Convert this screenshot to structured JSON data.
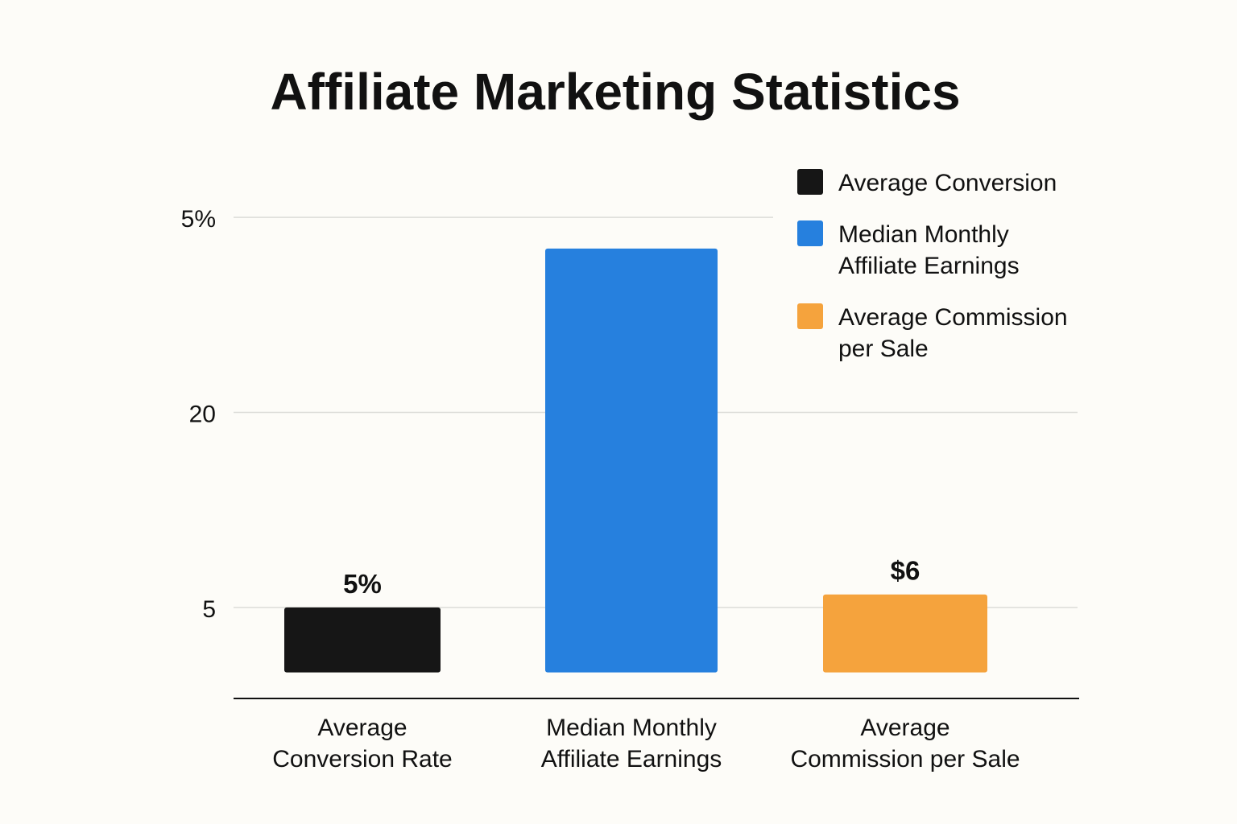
{
  "chart_data": {
    "type": "bar",
    "title": "Affiliate Marketing Statistics",
    "categories": [
      "Average\nConversion Rate",
      "Median Monthly\nAffiliate Earnings",
      "Average\nCommission per Sale"
    ],
    "values": [
      5,
      32.6,
      6
    ],
    "value_labels": [
      "5%",
      null,
      "$6"
    ],
    "colors": [
      "#161616",
      "#2680de",
      "#f5a33d"
    ],
    "ylim": [
      -2,
      35.5
    ],
    "yticks": [
      5,
      20,
      {
        "value": 35,
        "label": "5%"
      }
    ],
    "grid": true,
    "legend": {
      "position": "upper right",
      "entries": [
        "Average Conversion",
        "Median Monthly\nAffiliate Earnings",
        "Average Commission\nper Sale"
      ]
    }
  }
}
